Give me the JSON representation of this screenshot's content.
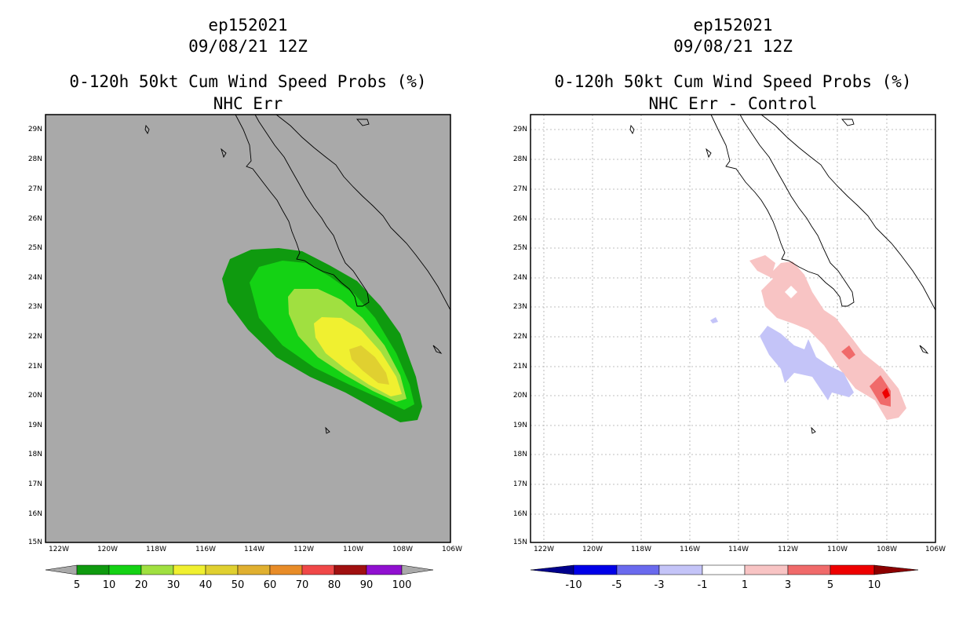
{
  "left_panel": {
    "title_lines": [
      "ep152021",
      "09/08/21 12Z",
      "0-120h 50kt Cum Wind Speed Probs (%)",
      "NHC Err"
    ],
    "background_color": "#a9a9a9",
    "colorbar": {
      "labels": [
        "5",
        "10",
        "20",
        "30",
        "40",
        "50",
        "60",
        "70",
        "80",
        "90",
        "100"
      ],
      "colors": [
        "#a9a9a9",
        "#0f9a0f",
        "#14d214",
        "#a0e040",
        "#f0f030",
        "#e0d030",
        "#e0b030",
        "#e88c28",
        "#f04848",
        "#a01010",
        "#9010d0",
        "#a9a9a9"
      ]
    }
  },
  "right_panel": {
    "title_lines": [
      "ep152021",
      "09/08/21 12Z",
      "0-120h 50kt Cum Wind Speed Probs (%)",
      "NHC Err - Control"
    ],
    "background_color": "#ffffff",
    "colorbar": {
      "labels": [
        "-10",
        "-5",
        "-3",
        "-1",
        "1",
        "3",
        "5",
        "10"
      ],
      "colors": [
        "#00008c",
        "#0000e8",
        "#6a6aee",
        "#c4c4f8",
        "#ffffff",
        "#f8c4c4",
        "#f06a6a",
        "#ee0000",
        "#8c0000"
      ]
    }
  },
  "map": {
    "lat_labels": [
      "29N",
      "28N",
      "27N",
      "26N",
      "25N",
      "24N",
      "23N",
      "22N",
      "21N",
      "20N",
      "19N",
      "18N",
      "17N",
      "16N",
      "15N"
    ],
    "lon_labels": [
      "122W",
      "120W",
      "118W",
      "116W",
      "114W",
      "112W",
      "110W",
      "108W",
      "106W"
    ]
  }
}
